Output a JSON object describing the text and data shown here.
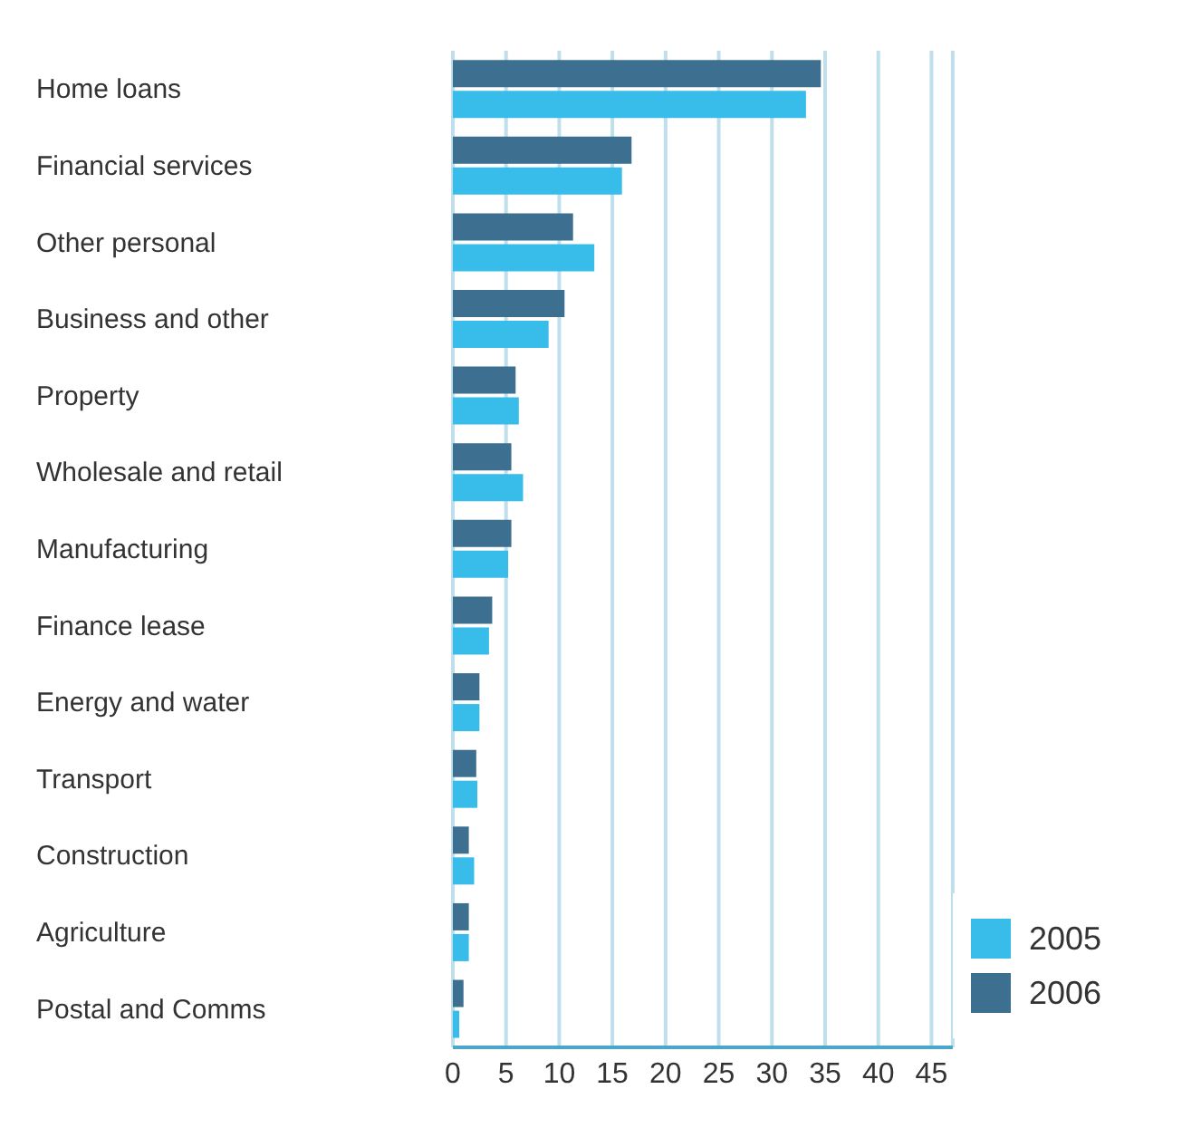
{
  "chart_data": {
    "type": "bar",
    "orientation": "horizontal",
    "categories": [
      "Home loans",
      "Financial services",
      "Other personal",
      "Business and other",
      "Property",
      "Wholesale and retail",
      "Manufacturing",
      "Finance lease",
      "Energy and water",
      "Transport",
      "Construction",
      "Agriculture",
      "Postal and Comms"
    ],
    "series": [
      {
        "name": "2006",
        "color": "#3d6f91",
        "values": [
          34.6,
          16.8,
          11.3,
          10.5,
          5.9,
          5.5,
          5.5,
          3.7,
          2.5,
          2.2,
          1.5,
          1.5,
          1.0
        ]
      },
      {
        "name": "2005",
        "color": "#38bdea",
        "values": [
          33.2,
          15.9,
          13.3,
          9.0,
          6.2,
          6.6,
          5.2,
          3.4,
          2.5,
          2.3,
          2.0,
          1.5,
          0.6
        ]
      }
    ],
    "xlim": [
      0,
      47
    ],
    "xticks": [
      0,
      5,
      10,
      15,
      20,
      25,
      30,
      35,
      40,
      45
    ],
    "grid": "x",
    "legend": "bottom right"
  }
}
